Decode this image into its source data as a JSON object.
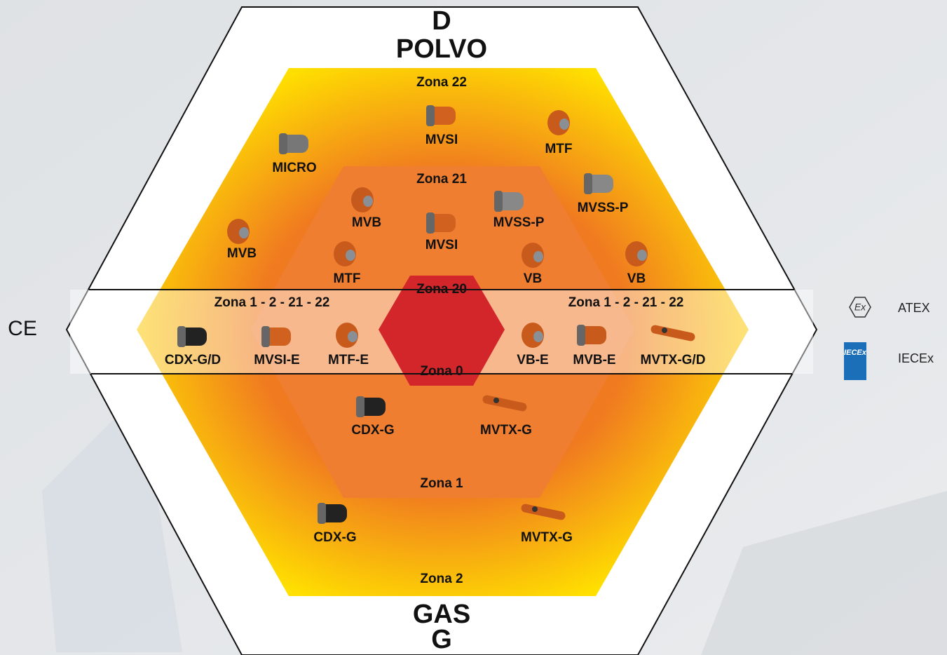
{
  "dust": {
    "letter": "D",
    "label": "POLVO"
  },
  "gas": {
    "label": "GAS",
    "letter": "G"
  },
  "ce_mark": "CE",
  "zones": [
    "Zona 22",
    "Zona 21",
    "Zona 20",
    "Zona 1 - 2 - 21 - 22",
    "Zona 1 - 2 - 21 - 22",
    "Zona 0",
    "Zona 1",
    "Zona 2"
  ],
  "products": [
    "MVSI",
    "MTF",
    "MICRO",
    "MVSS-P",
    "MVB",
    "MVSI",
    "MVSS-P",
    "MVB",
    "MTF",
    "VB",
    "VB",
    "CDX-G/D",
    "MVSI-E",
    "MTF-E",
    "VB-E",
    "MVB-E",
    "MVTX-G/D",
    "CDX-G",
    "MVTX-G",
    "CDX-G",
    "MVTX-G"
  ],
  "legend": [
    {
      "symbol": "Ex",
      "label": "ATEX"
    },
    {
      "symbol": "IECEx",
      "label": "IECEx"
    }
  ]
}
